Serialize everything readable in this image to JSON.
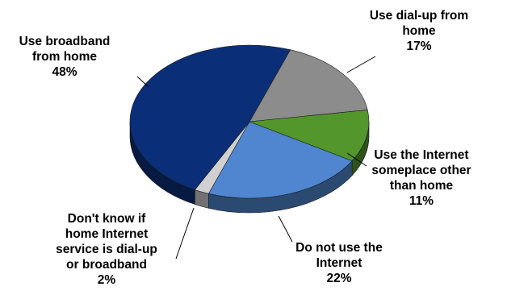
{
  "chart_data": {
    "type": "pie",
    "title": "",
    "slices": [
      {
        "name": "Use broadband from home",
        "value": 48,
        "label_lines": [
          "Use broadband",
          "from home",
          "48%"
        ],
        "color": "#0a2f78"
      },
      {
        "name": "Use dial-up from home",
        "value": 17,
        "label_lines": [
          "Use dial-up from",
          "home",
          "17%"
        ],
        "color": "#8c8c8c"
      },
      {
        "name": "Use the Internet someplace other than home",
        "value": 11,
        "label_lines": [
          "Use the Internet",
          "someplace other",
          "than home",
          "11%"
        ],
        "color": "#53962c"
      },
      {
        "name": "Do not use the Internet",
        "value": 22,
        "label_lines": [
          "Do not use the",
          "Internet",
          "22%"
        ],
        "color": "#4f86cf"
      },
      {
        "name": "Don't know if home Internet service is dial-up or broadband",
        "value": 2,
        "label_lines": [
          "Don't know if",
          "home Internet",
          "service is dial-up",
          "or broadband",
          "2%"
        ],
        "color": "#d0d0d0"
      }
    ],
    "legend": "none",
    "style": "3d-pie"
  }
}
